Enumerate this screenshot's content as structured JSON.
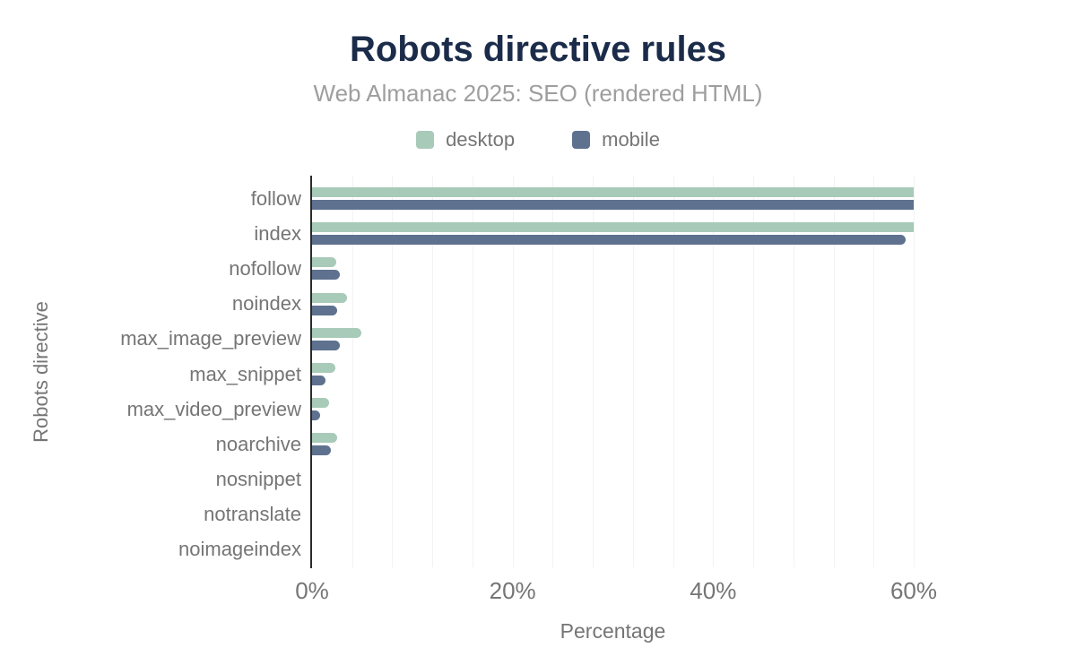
{
  "chart_data": {
    "type": "bar",
    "orientation": "horizontal",
    "title": "Robots directive rules",
    "subtitle": "Web Almanac 2025: SEO (rendered HTML)",
    "xlabel": "Percentage",
    "ylabel": "Robots directive",
    "categories": [
      "follow",
      "index",
      "nofollow",
      "noindex",
      "max_image_preview",
      "max_snippet",
      "max_video_preview",
      "noarchive",
      "nosnippet",
      "notranslate",
      "noimageindex"
    ],
    "series": [
      {
        "name": "desktop",
        "color": "#a8cab8",
        "values": [
          60.0,
          60.0,
          2.4,
          3.5,
          4.9,
          2.3,
          1.7,
          2.5,
          0.0,
          0.0,
          0.0
        ]
      },
      {
        "name": "mobile",
        "color": "#5e718f",
        "values": [
          60.0,
          59.2,
          2.8,
          2.5,
          2.8,
          1.3,
          0.8,
          1.9,
          0.0,
          0.0,
          0.0
        ]
      }
    ],
    "xlim": [
      0,
      60
    ],
    "xticks": {
      "values": [
        0,
        20,
        40,
        60
      ],
      "labels": [
        "0%",
        "20%",
        "40%",
        "60%"
      ]
    },
    "minor_gridline_step_pct": 4,
    "grid": true,
    "legend_position": "top-center"
  },
  "colors": {
    "bg": "#ffffff",
    "title": "#1b2b4a",
    "subtitle": "#9e9e9e",
    "labels": "#757575",
    "axisline": "#2b2b2b",
    "grid": "#f2f2f2"
  }
}
